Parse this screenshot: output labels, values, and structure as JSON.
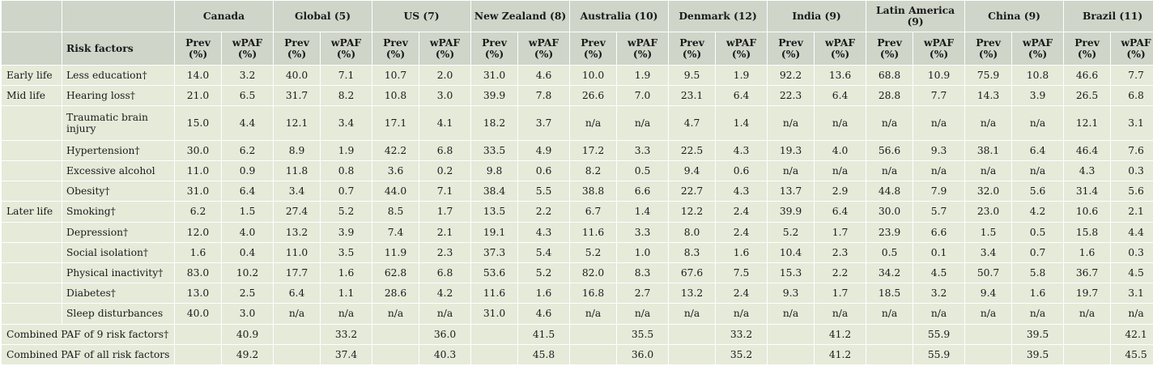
{
  "header": {
    "risk_factors_label": "Risk factors",
    "prev_label": "Prev (%)",
    "wpaf_label": "wPAF (%)",
    "regions": [
      "Canada",
      "Global (5)",
      "US (7)",
      "New Zealand (8)",
      "Australia (10)",
      "Denmark (12)",
      "India (9)",
      "Latin America (9)",
      "China (9)",
      "Brazil (11)"
    ]
  },
  "rows": [
    {
      "stage": "Early life",
      "factor": "Less education†",
      "values": [
        "14.0",
        "3.2",
        "40.0",
        "7.1",
        "10.7",
        "2.0",
        "31.0",
        "4.6",
        "10.0",
        "1.9",
        "9.5",
        "1.9",
        "92.2",
        "13.6",
        "68.8",
        "10.9",
        "75.9",
        "10.8",
        "46.6",
        "7.7"
      ]
    },
    {
      "stage": "Mid life",
      "factor": "Hearing loss†",
      "values": [
        "21.0",
        "6.5",
        "31.7",
        "8.2",
        "10.8",
        "3.0",
        "39.9",
        "7.8",
        "26.6",
        "7.0",
        "23.1",
        "6.4",
        "22.3",
        "6.4",
        "28.8",
        "7.7",
        "14.3",
        "3.9",
        "26.5",
        "6.8"
      ]
    },
    {
      "stage": "",
      "factor": "Traumatic brain injury",
      "values": [
        "15.0",
        "4.4",
        "12.1",
        "3.4",
        "17.1",
        "4.1",
        "18.2",
        "3.7",
        "n/a",
        "n/a",
        "4.7",
        "1.4",
        "n/a",
        "n/a",
        "n/a",
        "n/a",
        "n/a",
        "n/a",
        "12.1",
        "3.1"
      ]
    },
    {
      "stage": "",
      "factor": "Hypertension†",
      "values": [
        "30.0",
        "6.2",
        "8.9",
        "1.9",
        "42.2",
        "6.8",
        "33.5",
        "4.9",
        "17.2",
        "3.3",
        "22.5",
        "4.3",
        "19.3",
        "4.0",
        "56.6",
        "9.3",
        "38.1",
        "6.4",
        "46.4",
        "7.6"
      ]
    },
    {
      "stage": "",
      "factor": "Excessive alcohol",
      "values": [
        "11.0",
        "0.9",
        "11.8",
        "0.8",
        "3.6",
        "0.2",
        "9.8",
        "0.6",
        "8.2",
        "0.5",
        "9.4",
        "0.6",
        "n/a",
        "n/a",
        "n/a",
        "n/a",
        "n/a",
        "n/a",
        "4.3",
        "0.3"
      ]
    },
    {
      "stage": "",
      "factor": "Obesity†",
      "values": [
        "31.0",
        "6.4",
        "3.4",
        "0.7",
        "44.0",
        "7.1",
        "38.4",
        "5.5",
        "38.8",
        "6.6",
        "22.7",
        "4.3",
        "13.7",
        "2.9",
        "44.8",
        "7.9",
        "32.0",
        "5.6",
        "31.4",
        "5.6"
      ]
    },
    {
      "stage": "Later life",
      "factor": "Smoking†",
      "values": [
        "6.2",
        "1.5",
        "27.4",
        "5.2",
        "8.5",
        "1.7",
        "13.5",
        "2.2",
        "6.7",
        "1.4",
        "12.2",
        "2.4",
        "39.9",
        "6.4",
        "30.0",
        "5.7",
        "23.0",
        "4.2",
        "10.6",
        "2.1"
      ]
    },
    {
      "stage": "",
      "factor": "Depression†",
      "values": [
        "12.0",
        "4.0",
        "13.2",
        "3.9",
        "7.4",
        "2.1",
        "19.1",
        "4.3",
        "11.6",
        "3.3",
        "8.0",
        "2.4",
        "5.2",
        "1.7",
        "23.9",
        "6.6",
        "1.5",
        "0.5",
        "15.8",
        "4.4"
      ]
    },
    {
      "stage": "",
      "factor": "Social isolation†",
      "values": [
        "1.6",
        "0.4",
        "11.0",
        "3.5",
        "11.9",
        "2.3",
        "37.3",
        "5.4",
        "5.2",
        "1.0",
        "8.3",
        "1.6",
        "10.4",
        "2.3",
        "0.5",
        "0.1",
        "3.4",
        "0.7",
        "1.6",
        "0.3"
      ]
    },
    {
      "stage": "",
      "factor": "Physical inactivity†",
      "values": [
        "83.0",
        "10.2",
        "17.7",
        "1.6",
        "62.8",
        "6.8",
        "53.6",
        "5.2",
        "82.0",
        "8.3",
        "67.6",
        "7.5",
        "15.3",
        "2.2",
        "34.2",
        "4.5",
        "50.7",
        "5.8",
        "36.7",
        "4.5"
      ]
    },
    {
      "stage": "",
      "factor": "Diabetes†",
      "values": [
        "13.0",
        "2.5",
        "6.4",
        "1.1",
        "28.6",
        "4.2",
        "11.6",
        "1.6",
        "16.8",
        "2.7",
        "13.2",
        "2.4",
        "9.3",
        "1.7",
        "18.5",
        "3.2",
        "9.4",
        "1.6",
        "19.7",
        "3.1"
      ]
    },
    {
      "stage": "",
      "factor": "Sleep disturbances",
      "values": [
        "40.0",
        "3.0",
        "n/a",
        "n/a",
        "n/a",
        "n/a",
        "31.0",
        "4.6",
        "n/a",
        "n/a",
        "n/a",
        "n/a",
        "n/a",
        "n/a",
        "n/a",
        "n/a",
        "n/a",
        "n/a",
        "n/a",
        "n/a"
      ]
    }
  ],
  "combined": [
    {
      "label": "Combined PAF of 9 risk factors†",
      "values": [
        "40.9",
        "33.2",
        "36.0",
        "41.5",
        "35.5",
        "33.2",
        "41.2",
        "55.9",
        "39.5",
        "42.1"
      ]
    },
    {
      "label": "Combined PAF of all risk factors",
      "values": [
        "49.2",
        "37.4",
        "40.3",
        "45.8",
        "36.0",
        "35.2",
        "41.2",
        "55.9",
        "39.5",
        "45.5"
      ]
    }
  ]
}
